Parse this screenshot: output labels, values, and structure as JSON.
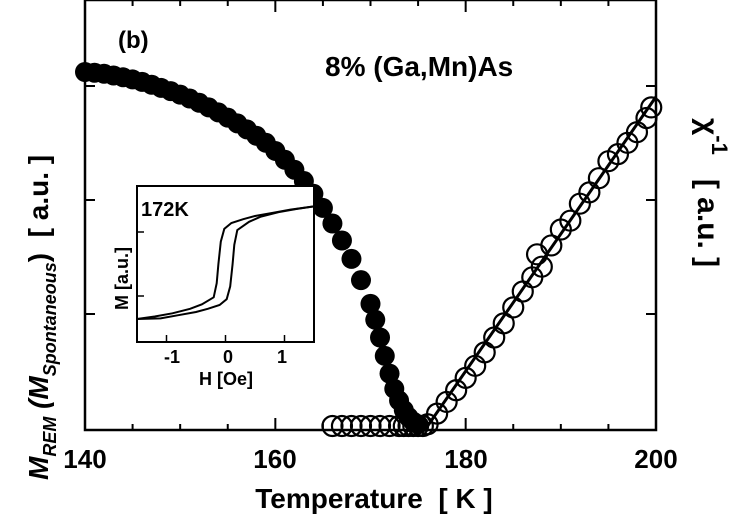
{
  "chart_data": [
    {
      "type": "scatter",
      "panel_label": "(b)",
      "annotation": "8% (Ga,Mn)As",
      "xlabel": "Temperature  [ K ]",
      "ylabel_left": {
        "main": "M",
        "main_sub": "REM",
        "paren_open": " (M",
        "paren_sub": "Spontaneous",
        "paren_close": ")  [ a.u. ]"
      },
      "ylabel_right": {
        "chi": "χ",
        "exp": "-1",
        "unit": "[ a.u. ]"
      },
      "xlim": [
        140,
        200
      ],
      "xticks": [
        "140",
        "160",
        "180",
        "200"
      ],
      "yaxis_left": "a.u. (no tick labels)",
      "yaxis_right": "a.u. (no tick labels)",
      "series": [
        {
          "marker": "filled-circle",
          "x": [
            140,
            141,
            142,
            143,
            144,
            145,
            146,
            147,
            148,
            149,
            150,
            151,
            152,
            153,
            154,
            155,
            156,
            157,
            158,
            159,
            160,
            161,
            162,
            163,
            164,
            165,
            166,
            167,
            168,
            169,
            170,
            170.5,
            171,
            171.5,
            172,
            172.5,
            173,
            173.5,
            174,
            174.5,
            175
          ],
          "y": [
            1.0,
            0.998,
            0.995,
            0.99,
            0.985,
            0.979,
            0.972,
            0.964,
            0.955,
            0.946,
            0.936,
            0.925,
            0.913,
            0.9,
            0.886,
            0.871,
            0.855,
            0.838,
            0.82,
            0.8,
            0.777,
            0.752,
            0.724,
            0.692,
            0.656,
            0.616,
            0.572,
            0.524,
            0.472,
            0.412,
            0.345,
            0.3,
            0.25,
            0.198,
            0.148,
            0.105,
            0.072,
            0.045,
            0.025,
            0.012,
            0.005
          ]
        },
        {
          "marker": "open-circle",
          "x": [
            166,
            167,
            168,
            169,
            170,
            171,
            172,
            173,
            173.5,
            174,
            174.5,
            175,
            175.5,
            176,
            177,
            178,
            179,
            180,
            181,
            182,
            183,
            184,
            185,
            186,
            187,
            187.5,
            188,
            189,
            190,
            191,
            192,
            193,
            194,
            195,
            196,
            197,
            198,
            199,
            199.5
          ],
          "y": [
            0.0,
            0.0,
            0.0,
            0.0,
            0.0,
            0.0,
            0.0,
            0.0,
            0.0,
            0.0,
            0.0,
            0.0,
            0.0,
            0.005,
            0.035,
            0.068,
            0.101,
            0.136,
            0.17,
            0.208,
            0.25,
            0.29,
            0.335,
            0.38,
            0.42,
            0.485,
            0.45,
            0.51,
            0.555,
            0.58,
            0.628,
            0.66,
            0.7,
            0.748,
            0.768,
            0.8,
            0.83,
            0.87,
            0.9
          ]
        },
        {
          "marker": "solid-line-fit",
          "x": [
            176,
            200
          ],
          "y": [
            0.0,
            0.93
          ]
        }
      ]
    },
    {
      "type": "line",
      "inset": true,
      "annotation": "172K",
      "xlabel": "H [Oe]",
      "ylabel": "M [a.u.]",
      "xlim": [
        -1.5,
        1.5
      ],
      "ylim": [
        -1.0,
        1.0
      ],
      "xticks": [
        "-1",
        "0",
        "1"
      ],
      "series": [
        {
          "name": "",
          "x": [
            -1.5,
            -1.2,
            -0.9,
            -0.6,
            -0.4,
            -0.2,
            -0.15,
            -0.12,
            -0.08,
            -0.02,
            0.1,
            0.3,
            0.5,
            0.8,
            1.1,
            1.5
          ],
          "y": [
            -0.86,
            -0.82,
            -0.77,
            -0.7,
            -0.63,
            -0.52,
            -0.3,
            0.0,
            0.35,
            0.55,
            0.64,
            0.7,
            0.75,
            0.8,
            0.85,
            0.9
          ]
        },
        {
          "name": "",
          "x": [
            1.5,
            1.2,
            0.9,
            0.6,
            0.4,
            0.2,
            0.15,
            0.12,
            0.08,
            0.02,
            -0.1,
            -0.3,
            -0.5,
            -0.8,
            -1.1,
            -1.5
          ],
          "y": [
            0.9,
            0.86,
            0.81,
            0.74,
            0.66,
            0.53,
            0.3,
            0.0,
            -0.35,
            -0.55,
            -0.64,
            -0.7,
            -0.75,
            -0.8,
            -0.85,
            -0.86
          ]
        }
      ]
    }
  ]
}
